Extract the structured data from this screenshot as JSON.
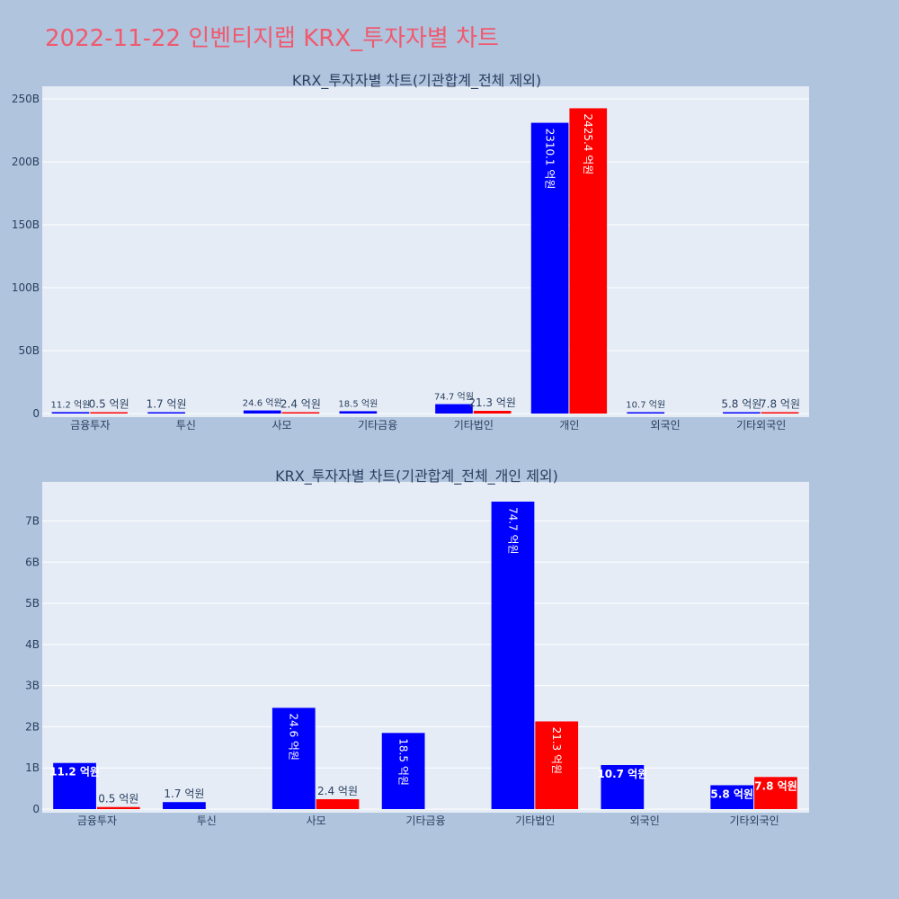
{
  "header": {
    "title": "2022-11-22 인벤티지랩 KRX_투자자별 차트"
  },
  "colors": {
    "background": "#b0c4de",
    "plot_bg": "#e5ecf6",
    "grid": "#ffffff",
    "title": "#ef5a6f",
    "series_a": "#0000ff",
    "series_b": "#ff0000",
    "text": "#2a3f5f"
  },
  "chart_data": [
    {
      "type": "bar",
      "title": "KRX_투자자별 차트(기관합계_전체 제외)",
      "categories": [
        "금융투자",
        "투신",
        "사모",
        "기타금융",
        "기타법인",
        "개인",
        "외국인",
        "기타외국인"
      ],
      "ylim": [
        0,
        260
      ],
      "yticks": [
        0,
        50,
        100,
        150,
        200,
        250
      ],
      "ytick_labels": [
        "0",
        "50B",
        "100B",
        "150B",
        "200B",
        "250B"
      ],
      "grid": true,
      "series": [
        {
          "values": [
            1.12,
            0.17,
            2.46,
            1.85,
            7.47,
            231.01,
            1.07,
            0.58
          ],
          "labels": [
            "11.2 억원",
            "1.7 억원",
            "24.6 억원",
            "18.5 억원",
            "74.7 억원",
            "2310.1 억원",
            "10.7 억원",
            "5.8 억원"
          ]
        },
        {
          "values": [
            0.05,
            null,
            0.24,
            null,
            2.13,
            242.54,
            null,
            0.78
          ],
          "labels": [
            "0.5 억원",
            "",
            "2.4 억원",
            "",
            "21.3 억원",
            "2425.4 억원",
            "",
            "7.8 억원"
          ]
        }
      ]
    },
    {
      "type": "bar",
      "title": "KRX_투자자별 차트(기관합계_전체_개인 제외)",
      "categories": [
        "금융투자",
        "투신",
        "사모",
        "기타금융",
        "기타법인",
        "외국인",
        "기타외국인"
      ],
      "ylim": [
        0,
        7.95
      ],
      "yticks": [
        0,
        1,
        2,
        3,
        4,
        5,
        6,
        7
      ],
      "ytick_labels": [
        "0",
        "1B",
        "2B",
        "3B",
        "4B",
        "5B",
        "6B",
        "7B"
      ],
      "grid": true,
      "series": [
        {
          "values": [
            1.12,
            0.17,
            2.46,
            1.85,
            7.47,
            1.07,
            0.58
          ],
          "labels": [
            "11.2 억원",
            "1.7 억원",
            "24.6 억원",
            "18.5 억원",
            "74.7 억원",
            "10.7 억원",
            "5.8 억원"
          ]
        },
        {
          "values": [
            0.05,
            null,
            0.24,
            null,
            2.13,
            null,
            0.78
          ],
          "labels": [
            "0.5 억원",
            "",
            "2.4 억원",
            "",
            "21.3 억원",
            "",
            "7.8 억원"
          ]
        }
      ]
    }
  ]
}
